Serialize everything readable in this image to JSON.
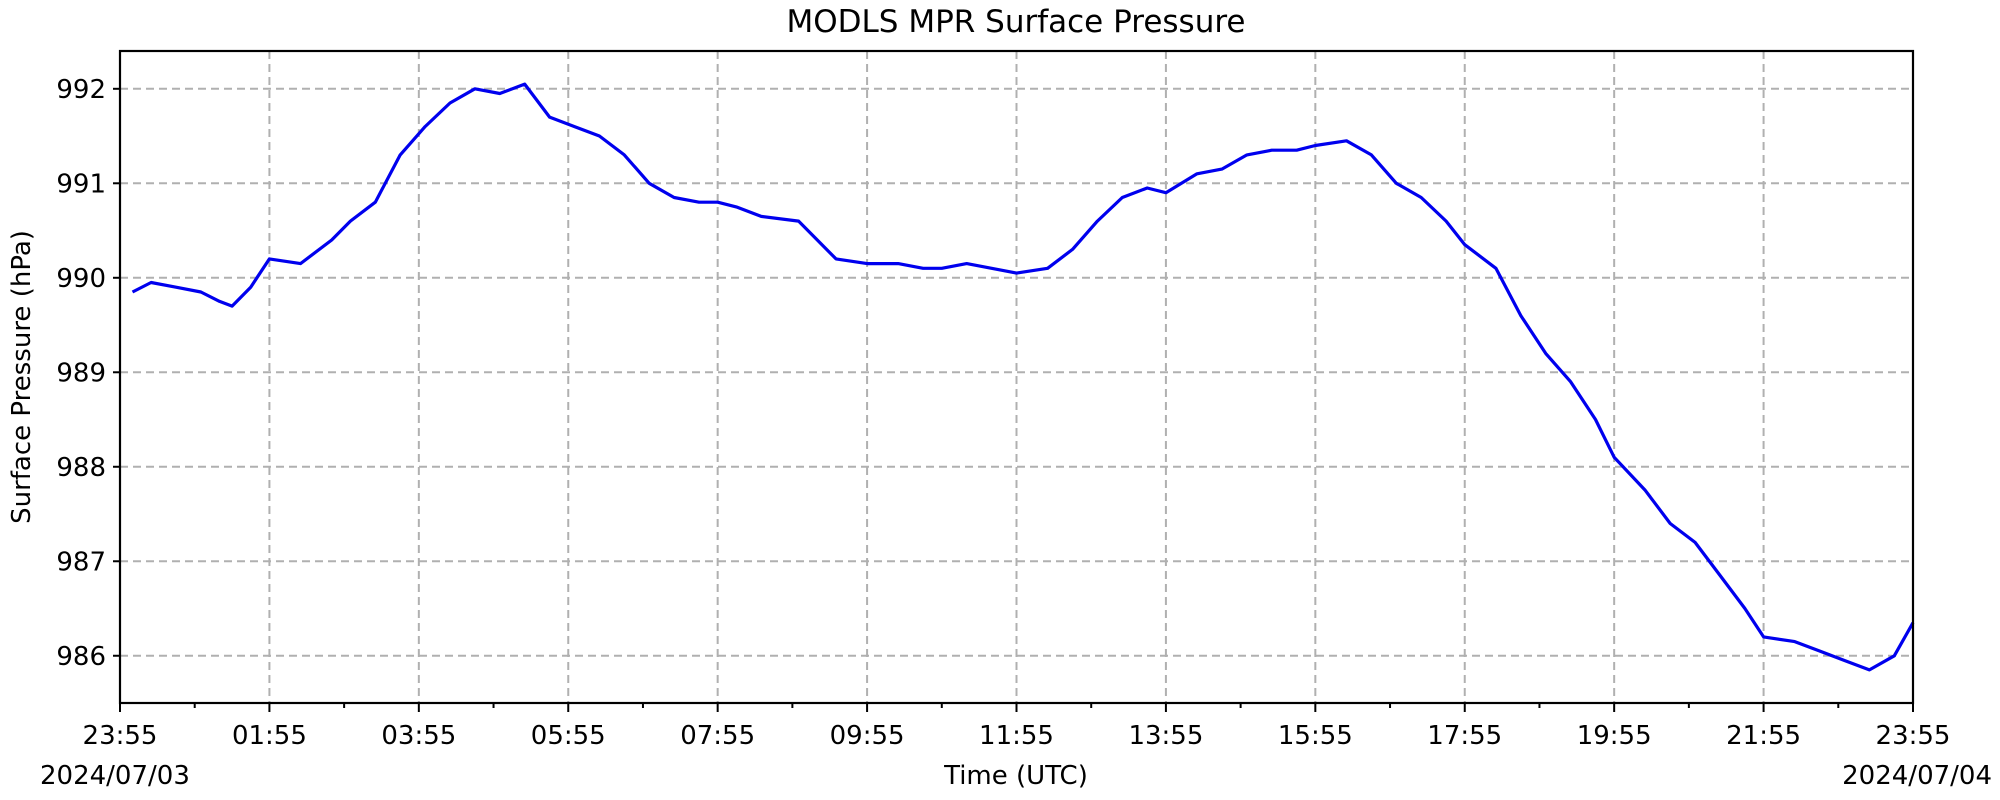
{
  "chart_data": {
    "type": "line",
    "title": "MODLS MPR Surface Pressure",
    "xlabel": "Time (UTC)",
    "ylabel": "Surface Pressure (hPa)",
    "date_start_label": "2024/07/03",
    "date_end_label": "2024/07/04",
    "xlim": [
      "2024-07-03T23:55",
      "2024-07-04T23:55"
    ],
    "ylim": [
      985.5,
      992.4
    ],
    "x_tick_labels": [
      "23:55",
      "01:55",
      "03:55",
      "05:55",
      "07:55",
      "09:55",
      "11:55",
      "13:55",
      "15:55",
      "17:55",
      "19:55",
      "21:55",
      "23:55"
    ],
    "y_ticks": [
      986,
      987,
      988,
      989,
      990,
      991,
      992
    ],
    "grid": true,
    "line_color": "#0000ee",
    "x": [
      "2024-07-04T00:05",
      "2024-07-04T00:20",
      "2024-07-04T00:40",
      "2024-07-04T01:00",
      "2024-07-04T01:15",
      "2024-07-04T01:25",
      "2024-07-04T01:40",
      "2024-07-04T01:55",
      "2024-07-04T02:20",
      "2024-07-04T02:45",
      "2024-07-04T03:00",
      "2024-07-04T03:20",
      "2024-07-04T03:40",
      "2024-07-04T04:00",
      "2024-07-04T04:20",
      "2024-07-04T04:40",
      "2024-07-04T05:00",
      "2024-07-04T05:20",
      "2024-07-04T05:40",
      "2024-07-04T06:00",
      "2024-07-04T06:20",
      "2024-07-04T06:40",
      "2024-07-04T07:00",
      "2024-07-04T07:20",
      "2024-07-04T07:40",
      "2024-07-04T07:55",
      "2024-07-04T08:10",
      "2024-07-04T08:30",
      "2024-07-04T09:00",
      "2024-07-04T09:30",
      "2024-07-04T09:55",
      "2024-07-04T10:20",
      "2024-07-04T10:40",
      "2024-07-04T10:55",
      "2024-07-04T11:15",
      "2024-07-04T11:35",
      "2024-07-04T11:55",
      "2024-07-04T12:20",
      "2024-07-04T12:40",
      "2024-07-04T13:00",
      "2024-07-04T13:20",
      "2024-07-04T13:40",
      "2024-07-04T13:55",
      "2024-07-04T14:20",
      "2024-07-04T14:40",
      "2024-07-04T15:00",
      "2024-07-04T15:20",
      "2024-07-04T15:40",
      "2024-07-04T15:55",
      "2024-07-04T16:20",
      "2024-07-04T16:40",
      "2024-07-04T17:00",
      "2024-07-04T17:20",
      "2024-07-04T17:40",
      "2024-07-04T17:55",
      "2024-07-04T18:20",
      "2024-07-04T18:40",
      "2024-07-04T19:00",
      "2024-07-04T19:20",
      "2024-07-04T19:40",
      "2024-07-04T19:55",
      "2024-07-04T20:20",
      "2024-07-04T20:40",
      "2024-07-04T21:00",
      "2024-07-04T21:20",
      "2024-07-04T21:40",
      "2024-07-04T21:55",
      "2024-07-04T22:20",
      "2024-07-04T22:40",
      "2024-07-04T23:00",
      "2024-07-04T23:20",
      "2024-07-04T23:40",
      "2024-07-04T23:55"
    ],
    "series": [
      {
        "values": [
          989.85,
          989.95,
          989.9,
          989.85,
          989.75,
          989.7,
          989.9,
          990.2,
          990.15,
          990.4,
          990.6,
          990.8,
          991.3,
          991.6,
          991.85,
          992.0,
          991.95,
          992.05,
          991.7,
          991.6,
          991.5,
          991.3,
          991.0,
          990.85,
          990.8,
          990.8,
          990.75,
          990.65,
          990.6,
          990.2,
          990.15,
          990.15,
          990.1,
          990.1,
          990.15,
          990.1,
          990.05,
          990.1,
          990.3,
          990.6,
          990.85,
          990.95,
          990.9,
          991.1,
          991.15,
          991.3,
          991.35,
          991.35,
          991.4,
          991.45,
          991.3,
          991.0,
          990.85,
          990.6,
          990.35,
          990.1,
          989.6,
          989.2,
          988.9,
          988.5,
          988.1,
          987.75,
          987.4,
          987.2,
          986.85,
          986.5,
          986.2,
          986.15,
          986.05,
          985.95,
          985.85,
          986.0,
          986.35
        ]
      }
    ]
  }
}
